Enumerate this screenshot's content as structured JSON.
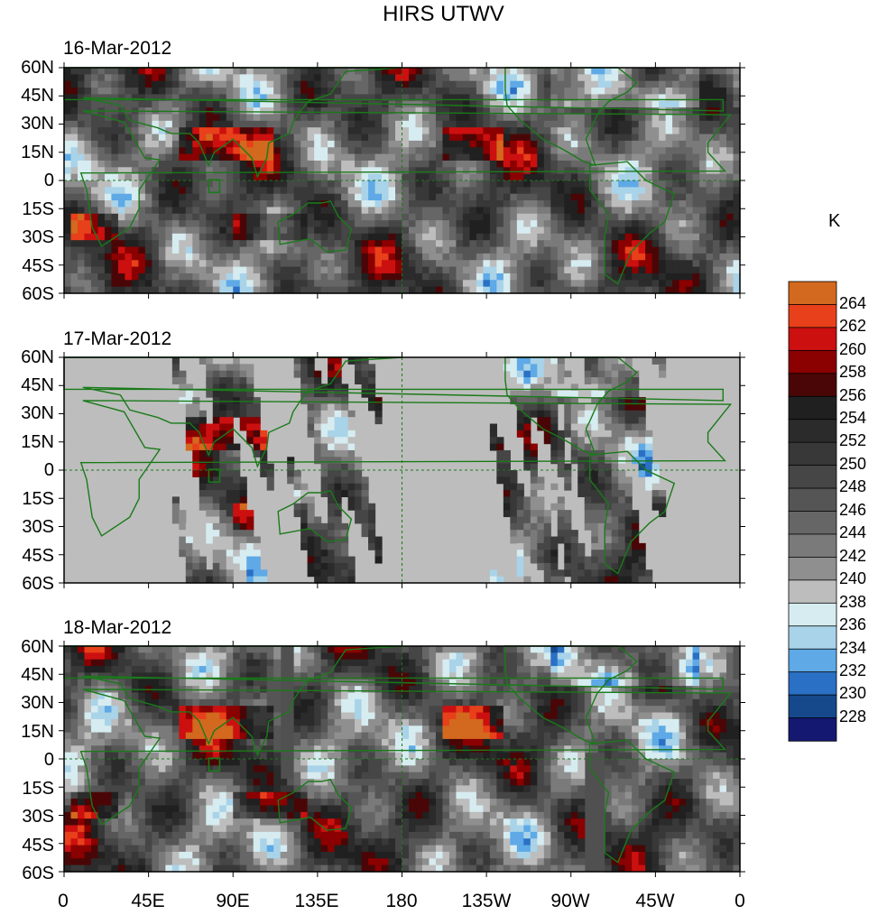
{
  "figure": {
    "title": "HIRS UTWV",
    "units": "K"
  },
  "panels": [
    {
      "date": "16-Mar-2012"
    },
    {
      "date": "17-Mar-2012"
    },
    {
      "date": "18-Mar-2012"
    }
  ],
  "axes": {
    "lat_labels": [
      "60N",
      "45N",
      "30N",
      "15N",
      "0",
      "15S",
      "30S",
      "45S",
      "60S"
    ],
    "lon_labels": [
      "0",
      "45E",
      "90E",
      "135E",
      "180",
      "135W",
      "90W",
      "45W",
      "0"
    ],
    "lat_range": [
      -60,
      60
    ],
    "lon_range": [
      0,
      360
    ]
  },
  "colorbar": {
    "labels": [
      "264",
      "262",
      "260",
      "258",
      "256",
      "254",
      "252",
      "250",
      "248",
      "246",
      "244",
      "242",
      "240",
      "238",
      "236",
      "234",
      "232",
      "230",
      "228"
    ],
    "colors": [
      "#d2691e",
      "#e8401a",
      "#cc1010",
      "#8b0000",
      "#4a0606",
      "#202020",
      "#2b2b2b",
      "#383838",
      "#464646",
      "#555555",
      "#666666",
      "#7a7a7a",
      "#8f8f8f",
      "#bdbdbd",
      "#d6ecf0",
      "#a9d3e8",
      "#5ea9e6",
      "#2a70c4",
      "#15498c",
      "#141870"
    ]
  },
  "colors": {
    "coast": "#1a7a1a",
    "missing": "#bdbdbd"
  }
}
